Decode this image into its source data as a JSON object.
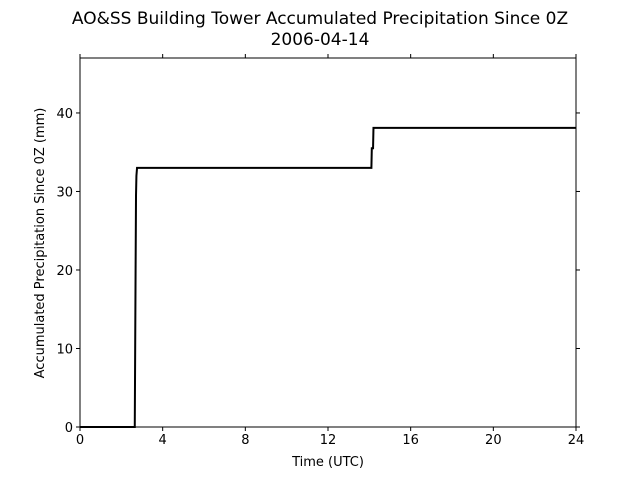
{
  "chart_data": {
    "type": "line",
    "title": "AO&SS Building Tower Accumulated Precipitation Since 0Z",
    "subtitle": "2006-04-14",
    "xlabel": "Time (UTC)",
    "ylabel": "Accumulated Precipitation Since 0Z (mm)",
    "xlim": [
      0,
      24
    ],
    "ylim": [
      0,
      47
    ],
    "xticks": [
      0,
      4,
      8,
      12,
      16,
      20,
      24
    ],
    "yticks": [
      0,
      10,
      20,
      30,
      40
    ],
    "grid": false,
    "series": [
      {
        "color": "#000000",
        "x": [
          0,
          2.65,
          2.67,
          2.69,
          2.71,
          2.73,
          2.76,
          14.1,
          14.12,
          14.18,
          14.2,
          14.25,
          24
        ],
        "y": [
          0,
          0,
          10,
          20,
          29.5,
          32,
          33,
          33,
          35.5,
          35.5,
          38.1,
          38.1,
          38.1
        ]
      }
    ]
  }
}
